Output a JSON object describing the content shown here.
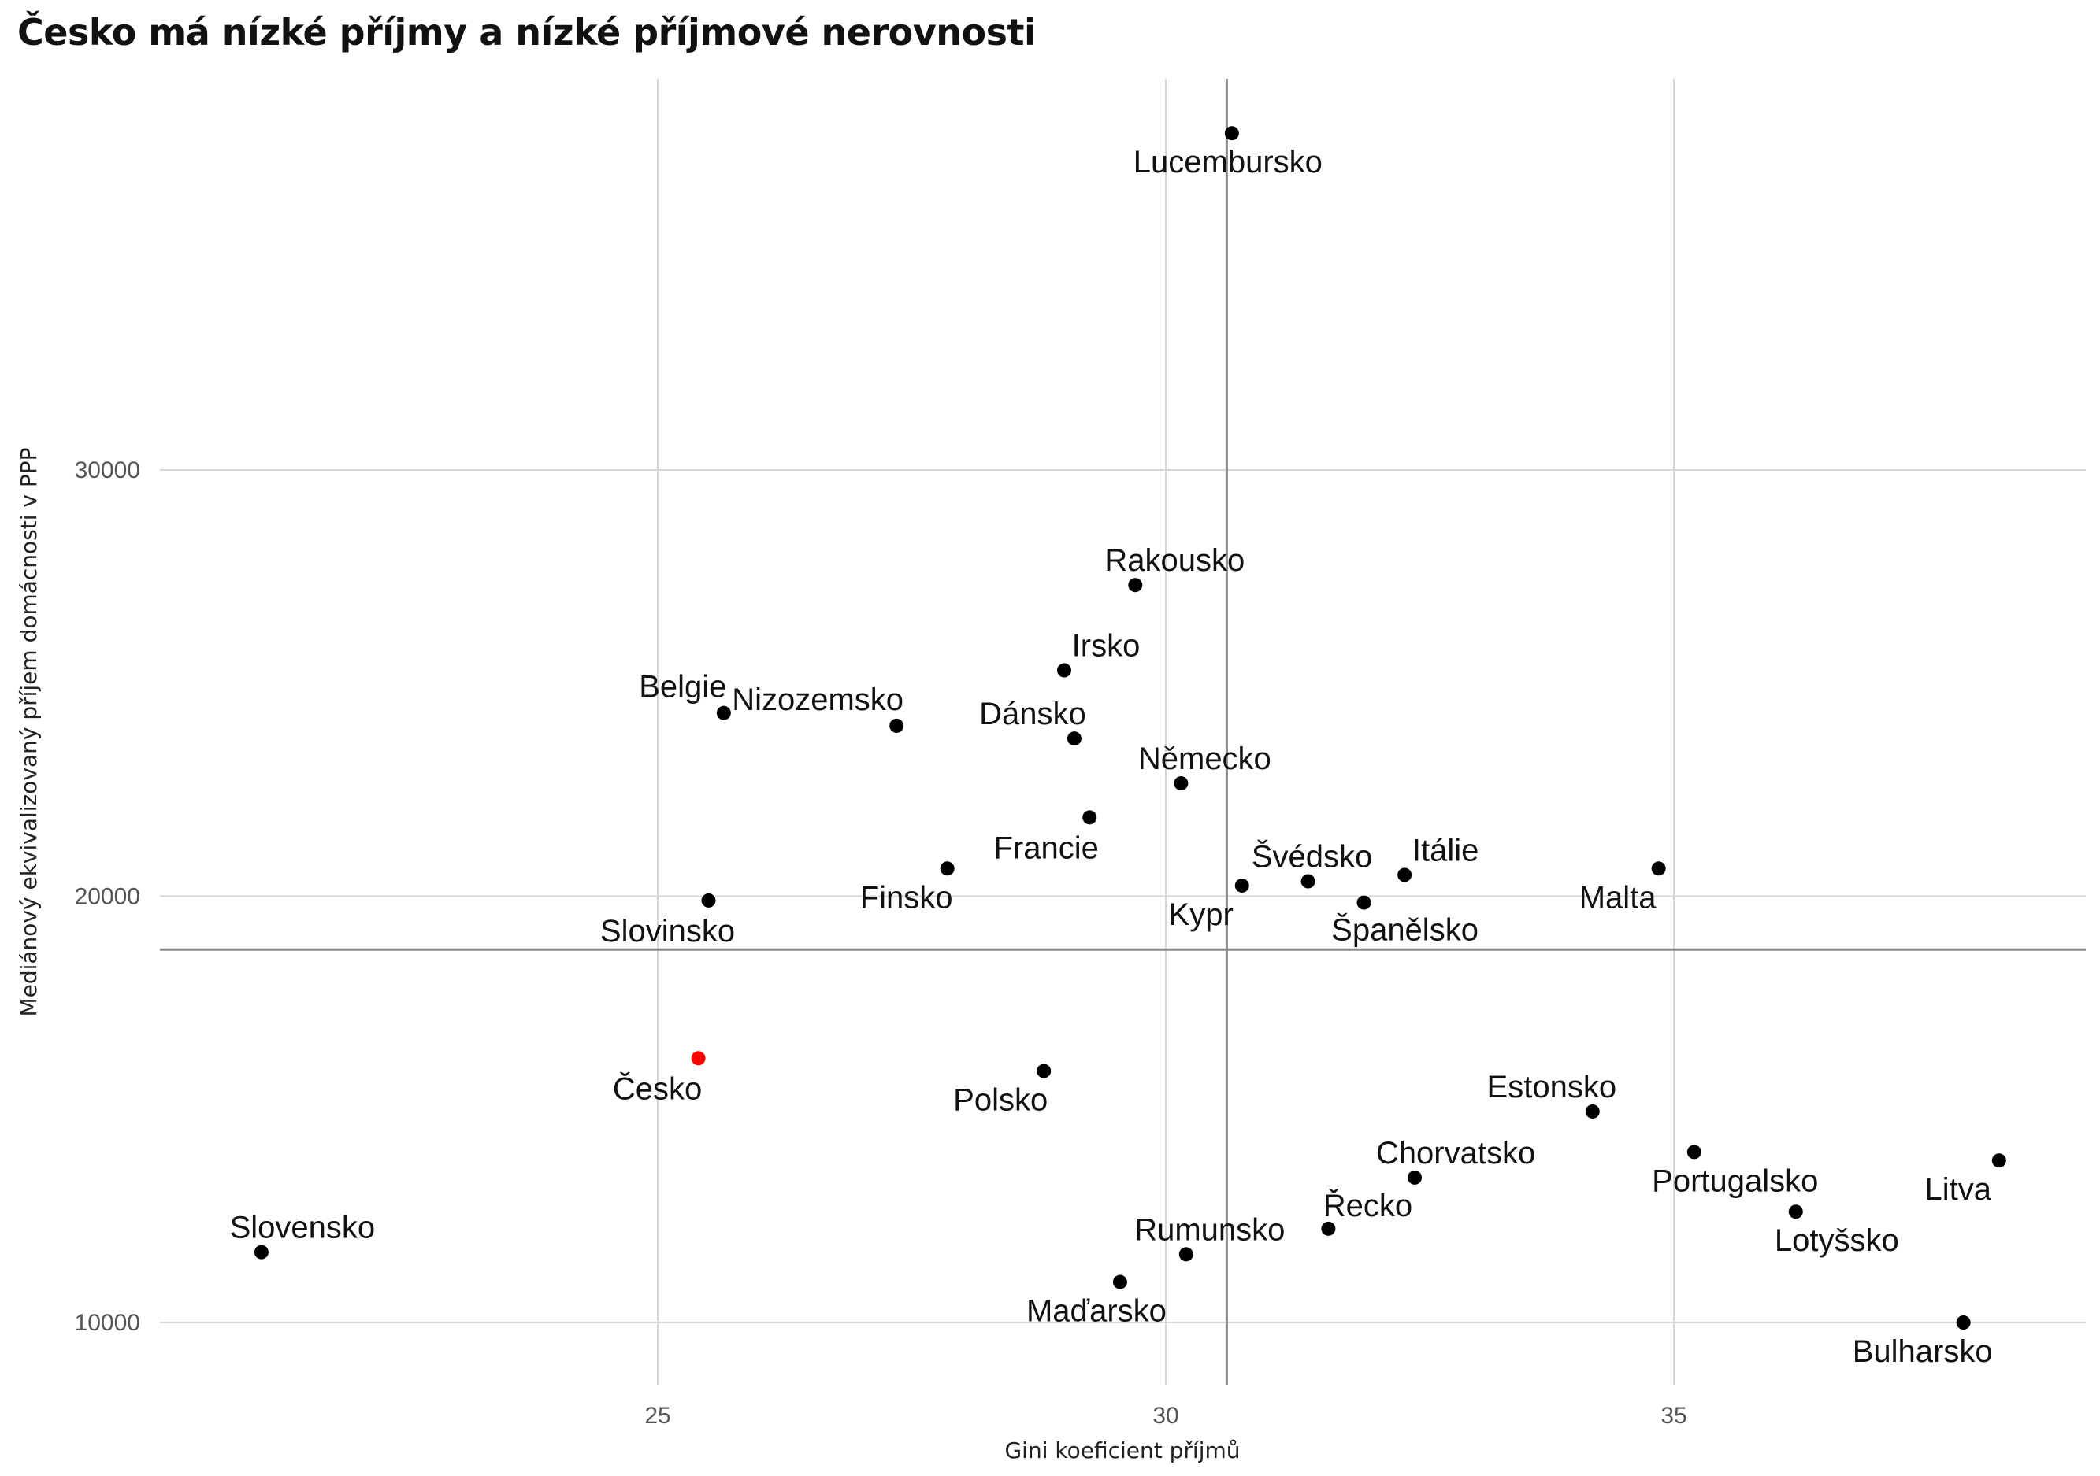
{
  "chart_data": {
    "type": "scatter",
    "title": "Česko má nízké příjmy a nízké příjmové nerovnosti",
    "xlabel": "Gini koeficient příjmů",
    "ylabel": "Mediánový ekvivalizovaný příjem domácnosti v PPP",
    "xlim": [
      20.2,
      39.1
    ],
    "ylim": [
      8600,
      39500
    ],
    "xticks": [
      25,
      30,
      35
    ],
    "yticks": [
      10000,
      20000,
      30000
    ],
    "grid": true,
    "reference_lines": {
      "x": 30.6,
      "y": 18750
    },
    "highlight_color": "#ff0000",
    "point_color": "#000000",
    "points": [
      {
        "label": "Lucembursko",
        "x": 30.65,
        "y": 37900
      },
      {
        "label": "Rakousko",
        "x": 29.7,
        "y": 27300
      },
      {
        "label": "Irsko",
        "x": 29.0,
        "y": 25300
      },
      {
        "label": "Belgie",
        "x": 25.65,
        "y": 24300
      },
      {
        "label": "Nizozemsko",
        "x": 27.35,
        "y": 24000
      },
      {
        "label": "Dánsko",
        "x": 29.1,
        "y": 23700
      },
      {
        "label": "Německo",
        "x": 30.15,
        "y": 22650
      },
      {
        "label": "Francie",
        "x": 29.25,
        "y": 21850
      },
      {
        "label": "Finsko",
        "x": 27.85,
        "y": 20650
      },
      {
        "label": "Švédsko",
        "x": 31.4,
        "y": 20350
      },
      {
        "label": "Itálie",
        "x": 32.35,
        "y": 20500
      },
      {
        "label": "Kypr",
        "x": 30.75,
        "y": 20250
      },
      {
        "label": "Španělsko",
        "x": 31.95,
        "y": 19850
      },
      {
        "label": "Malta",
        "x": 34.85,
        "y": 20650
      },
      {
        "label": "Slovinsko",
        "x": 25.5,
        "y": 19900
      },
      {
        "label": "Česko",
        "x": 25.4,
        "y": 16200,
        "highlight": true
      },
      {
        "label": "Polsko",
        "x": 28.8,
        "y": 15900
      },
      {
        "label": "Estonsko",
        "x": 34.2,
        "y": 14950
      },
      {
        "label": "Portugalsko",
        "x": 35.2,
        "y": 14000
      },
      {
        "label": "Litva",
        "x": 38.2,
        "y": 13800
      },
      {
        "label": "Chorvatsko",
        "x": 32.45,
        "y": 13400
      },
      {
        "label": "Lotyšsko",
        "x": 36.2,
        "y": 12600
      },
      {
        "label": "Řecko",
        "x": 31.6,
        "y": 12200
      },
      {
        "label": "Slovensko",
        "x": 21.1,
        "y": 11650
      },
      {
        "label": "Rumunsko",
        "x": 30.2,
        "y": 11600
      },
      {
        "label": "Maďarsko",
        "x": 29.55,
        "y": 10950
      },
      {
        "label": "Bulharsko",
        "x": 37.85,
        "y": 10000
      }
    ]
  }
}
